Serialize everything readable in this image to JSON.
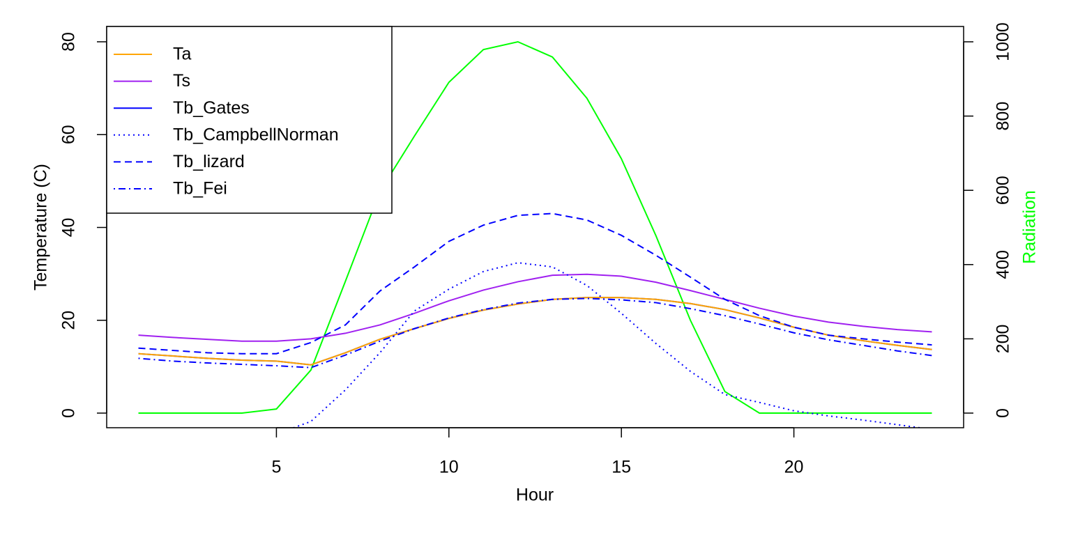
{
  "chart_data": {
    "type": "line",
    "xlabel": "Hour",
    "ylabel": "Temperature (C)",
    "y2label": "Radiation",
    "x": [
      1,
      2,
      3,
      4,
      5,
      6,
      7,
      8,
      9,
      10,
      11,
      12,
      13,
      14,
      15,
      16,
      17,
      18,
      19,
      20,
      21,
      22,
      23,
      24
    ],
    "xlim": [
      0.08,
      24.92
    ],
    "xticks": [
      5,
      10,
      15,
      20
    ],
    "ylim": [
      -3.15,
      83.3
    ],
    "yticks": [
      0,
      20,
      40,
      60,
      80
    ],
    "y2lim": [
      -39.4,
      1041.3
    ],
    "y2ticks": [
      0,
      200,
      400,
      600,
      800,
      1000
    ],
    "legend": "top-left",
    "series": [
      {
        "axis": "y2",
        "color": "#00FF00",
        "linetype": "solid",
        "values": [
          0,
          0,
          0,
          0,
          11,
          116,
          355,
          597,
          746,
          891,
          979,
          1000,
          959,
          848,
          685,
          478,
          250,
          58,
          0,
          0,
          0,
          0,
          0,
          0
        ]
      },
      {
        "name": "Tb_Gates",
        "color": "#0000FF",
        "linetype": "solid",
        "values": [
          12.8,
          12.3,
          11.8,
          11.4,
          11.2,
          10.4,
          13,
          15.9,
          18.2,
          20.4,
          22.2,
          23.5,
          24.5,
          24.9,
          24.9,
          24.5,
          23.6,
          22.3,
          20.5,
          18.5,
          16.8,
          15.6,
          14.6,
          13.7
        ]
      },
      {
        "name": "Ta",
        "color": "#FFA500",
        "linetype": "solid",
        "values": [
          12.8,
          12.3,
          11.8,
          11.4,
          11.2,
          10.4,
          13,
          15.9,
          18.2,
          20.4,
          22.2,
          23.5,
          24.5,
          24.9,
          24.9,
          24.5,
          23.6,
          22.3,
          20.5,
          18.5,
          16.8,
          15.6,
          14.6,
          13.7
        ]
      },
      {
        "name": "Ts",
        "color": "#A020F0",
        "linetype": "solid",
        "values": [
          16.8,
          16.3,
          15.9,
          15.5,
          15.5,
          16,
          17.2,
          19,
          21.5,
          24.2,
          26.5,
          28.3,
          29.7,
          29.9,
          29.5,
          28.2,
          26.4,
          24.5,
          22.6,
          20.9,
          19.6,
          18.7,
          18,
          17.5
        ]
      },
      {
        "name": "Tb_CampbellNorman",
        "color": "#0000FF",
        "linetype": "dotted",
        "values": [
          -6,
          -6,
          -5.5,
          -5,
          -4.5,
          -1.8,
          5,
          13,
          22,
          26.7,
          30.5,
          32.4,
          31.5,
          27.5,
          21.5,
          15,
          9,
          4,
          2.3,
          0.5,
          -0.6,
          -1.5,
          -2.5,
          -3.5
        ]
      },
      {
        "name": "Tb_lizard",
        "color": "#0000FF",
        "linetype": "dashed",
        "values": [
          14,
          13.5,
          13,
          12.8,
          12.8,
          15.2,
          19,
          26.3,
          31.5,
          37,
          40.5,
          42.6,
          43,
          41.6,
          38.3,
          34,
          29.3,
          24.5,
          21,
          18.5,
          16.8,
          16,
          15.3,
          14.7
        ]
      },
      {
        "name": "Tb_Fei",
        "color": "#0000FF",
        "linetype": "dotdash",
        "values": [
          11.8,
          11.2,
          10.8,
          10.5,
          10.2,
          9.8,
          12.5,
          15.5,
          18.2,
          20.5,
          22.3,
          23.7,
          24.5,
          24.7,
          24.4,
          23.8,
          22.5,
          21,
          19.2,
          17.3,
          15.8,
          14.6,
          13.4,
          12.4
        ]
      }
    ]
  }
}
